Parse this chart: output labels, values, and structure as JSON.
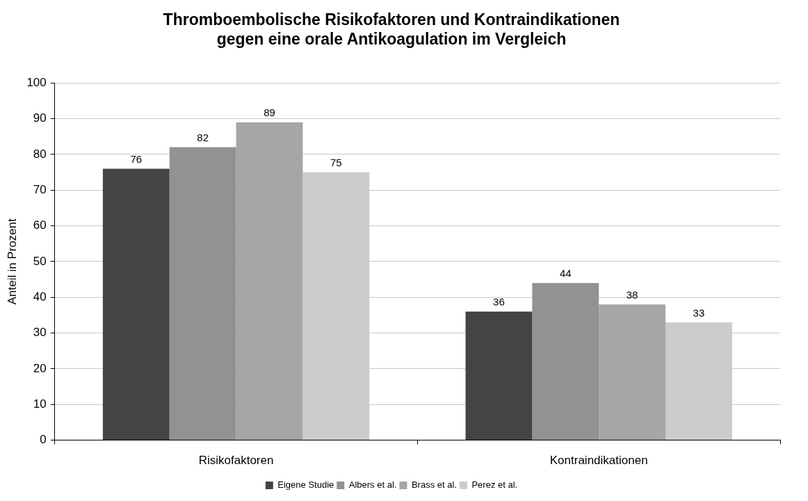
{
  "chart_data": {
    "type": "bar",
    "title": "Thromboembolische Risikofaktoren und Kontraindikationen\ngegen eine orale Antikoagulation im Vergleich",
    "ylabel": "Anteil in Prozent",
    "categories": [
      "Risikofaktoren",
      "Kontraindikationen"
    ],
    "series": [
      {
        "name": "Eigene Studie",
        "color": "#444444",
        "values": [
          76,
          36
        ]
      },
      {
        "name": "Albers et al.",
        "color": "#929292",
        "values": [
          82,
          44
        ]
      },
      {
        "name": "Brass et al.",
        "color": "#a6a6a6",
        "values": [
          89,
          38
        ]
      },
      {
        "name": "Perez et al.",
        "color": "#cccccc",
        "values": [
          75,
          33
        ]
      }
    ],
    "ylim": [
      0,
      100
    ],
    "yticks": [
      0,
      10,
      20,
      30,
      40,
      50,
      60,
      70,
      80,
      90,
      100
    ],
    "grid": "y",
    "legend": "bottom",
    "data_labels": true
  }
}
